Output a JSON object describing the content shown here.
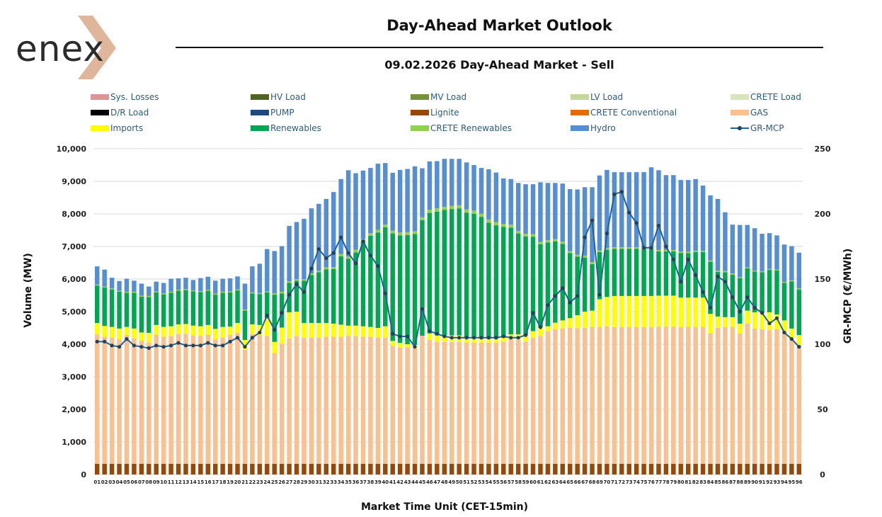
{
  "header": {
    "logo_text": "enex",
    "title": "Day-Ahead Market Outlook",
    "subtitle": "09.02.2026  Day-Ahead Market - Sell"
  },
  "colors": {
    "Sys. Losses": "#d99694",
    "HV Load": "#4f6228",
    "MV Load": "#76923c",
    "LV Load": "#c3d69b",
    "CRETE Load": "#d7e4bc",
    "D/R Load": "#000000",
    "PUMP": "#1f497d",
    "Lignite": "#974706",
    "CRETE Conventional": "#e36c09",
    "GAS": "#fac090",
    "Imports": "#ffff00",
    "Renewables": "#00a651",
    "CRETE Renewables": "#92d050",
    "Hydro": "#558ed5",
    "GR-MCP": "#1f6390",
    "logo_dark": "#2b2b2b",
    "logo_accent": "#d9a98a"
  },
  "chart_data": {
    "type": "bar",
    "title": "09.02.2026  Day-Ahead Market - Sell",
    "xlabel": "Market Time Unit (CET-15min)",
    "ylabel": "Volume (MW)",
    "y2label": "GR-MCP (€/MWh)",
    "ylim": [
      0,
      10000
    ],
    "y2lim": [
      0,
      250
    ],
    "yticks": [
      "0",
      "1,000",
      "2,000",
      "3,000",
      "4,000",
      "5,000",
      "6,000",
      "7,000",
      "8,000",
      "9,000",
      "10,000"
    ],
    "y2ticks": [
      "0",
      "50",
      "100",
      "150",
      "200",
      "250"
    ],
    "legend": [
      "Sys. Losses",
      "HV Load",
      "MV Load",
      "LV Load",
      "CRETE Load",
      "D/R Load",
      "PUMP",
      "Lignite",
      "CRETE Conventional",
      "GAS",
      "Imports",
      "Renewables",
      "CRETE Renewables",
      "Hydro",
      "GR-MCP"
    ],
    "categories": [
      "01",
      "02",
      "03",
      "04",
      "05",
      "06",
      "07",
      "08",
      "09",
      "10",
      "11",
      "12",
      "13",
      "14",
      "15",
      "16",
      "17",
      "18",
      "19",
      "20",
      "21",
      "22",
      "23",
      "24",
      "25",
      "26",
      "27",
      "28",
      "29",
      "30",
      "31",
      "32",
      "33",
      "34",
      "35",
      "36",
      "37",
      "38",
      "39",
      "40",
      "41",
      "42",
      "43",
      "44",
      "45",
      "46",
      "47",
      "48",
      "49",
      "50",
      "51",
      "52",
      "53",
      "54",
      "55",
      "56",
      "57",
      "58",
      "59",
      "60",
      "61",
      "62",
      "63",
      "64",
      "65",
      "66",
      "67",
      "68",
      "69",
      "70",
      "71",
      "72",
      "73",
      "74",
      "75",
      "76",
      "77",
      "78",
      "79",
      "80",
      "81",
      "82",
      "83",
      "84",
      "85",
      "86",
      "87",
      "88",
      "89",
      "90",
      "91",
      "92",
      "93",
      "94",
      "95",
      "96"
    ],
    "series": [
      {
        "name": "Lignite",
        "values": [
          330,
          330,
          330,
          330,
          330,
          330,
          330,
          330,
          330,
          330,
          330,
          330,
          330,
          330,
          330,
          330,
          330,
          330,
          330,
          330,
          330,
          330,
          330,
          330,
          330,
          330,
          330,
          330,
          330,
          330,
          330,
          330,
          330,
          330,
          330,
          330,
          330,
          330,
          330,
          330,
          330,
          330,
          330,
          330,
          330,
          330,
          330,
          330,
          330,
          330,
          330,
          330,
          330,
          330,
          330,
          330,
          330,
          330,
          330,
          330,
          330,
          330,
          330,
          330,
          330,
          330,
          330,
          330,
          330,
          330,
          330,
          330,
          330,
          330,
          330,
          330,
          330,
          330,
          330,
          330,
          330,
          330,
          330,
          330,
          330,
          330,
          330,
          330,
          330,
          330,
          330,
          330,
          330,
          330,
          330,
          330
        ]
      },
      {
        "name": "GAS",
        "values": [
          3970,
          3900,
          3870,
          3820,
          3950,
          3850,
          3780,
          3720,
          3960,
          3900,
          3920,
          3980,
          3990,
          3940,
          3920,
          3960,
          3820,
          3880,
          3960,
          4020,
          3500,
          3980,
          3950,
          3920,
          3400,
          3680,
          3850,
          3920,
          3870,
          3870,
          3870,
          3900,
          3900,
          3900,
          3920,
          3920,
          3900,
          3900,
          3870,
          3870,
          3620,
          3560,
          3570,
          3550,
          3930,
          3800,
          3740,
          3740,
          3740,
          3740,
          3720,
          3720,
          3720,
          3720,
          3720,
          3750,
          3820,
          3800,
          3750,
          3870,
          3920,
          4070,
          4130,
          4150,
          4170,
          4160,
          4170,
          4200,
          4200,
          4220,
          4200,
          4200,
          4200,
          4200,
          4200,
          4200,
          4210,
          4210,
          4210,
          4200,
          4200,
          4200,
          4200,
          4000,
          4170,
          4200,
          4200,
          4000,
          4300,
          4150,
          4130,
          4100,
          4130,
          4050,
          3850,
          3650
        ]
      },
      {
        "name": "Imports",
        "values": [
          350,
          330,
          330,
          330,
          250,
          300,
          250,
          300,
          300,
          300,
          300,
          300,
          300,
          300,
          300,
          300,
          320,
          320,
          250,
          300,
          300,
          300,
          310,
          540,
          340,
          500,
          800,
          750,
          450,
          450,
          450,
          420,
          400,
          370,
          320,
          320,
          320,
          300,
          300,
          350,
          150,
          150,
          100,
          100,
          0,
          200,
          200,
          200,
          200,
          200,
          150,
          150,
          120,
          120,
          120,
          120,
          150,
          170,
          200,
          200,
          270,
          150,
          200,
          250,
          300,
          400,
          500,
          500,
          850,
          900,
          950,
          950,
          950,
          950,
          950,
          950,
          950,
          950,
          950,
          900,
          900,
          900,
          900,
          600,
          350,
          300,
          300,
          300,
          400,
          500,
          500,
          550,
          450,
          350,
          300,
          300
        ]
      },
      {
        "name": "Renewables",
        "values": [
          1150,
          1180,
          1150,
          1130,
          1050,
          1100,
          1100,
          1100,
          1000,
          1000,
          1030,
          1030,
          1040,
          1050,
          1050,
          1050,
          1050,
          1050,
          1050,
          1000,
          900,
          950,
          950,
          800,
          1450,
          1050,
          900,
          950,
          1300,
          1470,
          1560,
          1650,
          1680,
          2100,
          2050,
          2250,
          2600,
          2800,
          2930,
          3040,
          3300,
          3300,
          3350,
          3400,
          3550,
          3700,
          3800,
          3850,
          3880,
          3900,
          3840,
          3800,
          3740,
          3560,
          3480,
          3400,
          3280,
          3100,
          3030,
          2900,
          2550,
          2570,
          2500,
          2350,
          2000,
          1800,
          1660,
          1430,
          1450,
          1450,
          1450,
          1450,
          1450,
          1450,
          1450,
          1450,
          1360,
          1360,
          1360,
          1370,
          1370,
          1400,
          1400,
          1600,
          1370,
          1380,
          1300,
          1400,
          1300,
          1250,
          1250,
          1300,
          1350,
          1150,
          1450,
          1400
        ]
      },
      {
        "name": "CRETE Renewables",
        "values": [
          30,
          30,
          30,
          30,
          30,
          30,
          30,
          30,
          30,
          30,
          30,
          30,
          30,
          30,
          30,
          30,
          30,
          30,
          30,
          30,
          30,
          30,
          30,
          30,
          40,
          50,
          50,
          50,
          50,
          50,
          50,
          60,
          60,
          70,
          70,
          80,
          80,
          80,
          80,
          80,
          90,
          90,
          90,
          90,
          90,
          100,
          100,
          100,
          100,
          100,
          100,
          100,
          100,
          100,
          100,
          90,
          90,
          80,
          80,
          80,
          70,
          70,
          70,
          70,
          60,
          60,
          60,
          60,
          50,
          50,
          50,
          50,
          50,
          50,
          50,
          50,
          40,
          40,
          40,
          40,
          40,
          40,
          40,
          40,
          40,
          40,
          40,
          30,
          30,
          30,
          30,
          30,
          30,
          30,
          30,
          30
        ]
      },
      {
        "name": "Hydro",
        "values": [
          560,
          520,
          330,
          300,
          400,
          340,
          370,
          290,
          300,
          320,
          400,
          350,
          350,
          320,
          400,
          400,
          400,
          400,
          400,
          400,
          800,
          800,
          900,
          1300,
          1300,
          1400,
          1700,
          1750,
          1850,
          2000,
          2050,
          2100,
          2300,
          2300,
          2650,
          2350,
          2100,
          2000,
          2030,
          1890,
          1770,
          1920,
          1940,
          1990,
          1500,
          1480,
          1450,
          1470,
          1440,
          1420,
          1440,
          1400,
          1400,
          1540,
          1520,
          1400,
          1400,
          1470,
          1520,
          1530,
          1830,
          1760,
          1720,
          1780,
          1900,
          2000,
          2100,
          2300,
          2300,
          2400,
          2300,
          2300,
          2300,
          2300,
          2300,
          2450,
          2450,
          2300,
          2300,
          2200,
          2200,
          2200,
          2000,
          2000,
          2200,
          1800,
          1500,
          1600,
          1300,
          1300,
          1150,
          1100,
          1050,
          1150,
          1050,
          1100
        ]
      }
    ],
    "line": {
      "name": "GR-MCP",
      "axis": "right",
      "values": [
        102,
        102,
        99,
        98,
        104,
        99,
        98,
        97,
        99,
        98,
        99,
        101,
        99,
        99,
        99,
        101,
        99,
        99,
        102,
        105,
        98,
        105,
        109,
        122,
        111,
        124,
        138,
        146,
        140,
        158,
        173,
        166,
        170,
        182,
        170,
        162,
        179,
        168,
        160,
        139,
        108,
        106,
        106,
        98,
        127,
        110,
        108,
        106,
        105,
        105,
        105,
        105,
        105,
        105,
        105,
        106,
        105,
        105,
        107,
        124,
        113,
        130,
        137,
        143,
        132,
        137,
        182,
        195,
        138,
        185,
        215,
        217,
        201,
        193,
        174,
        174,
        191,
        175,
        165,
        148,
        165,
        153,
        140,
        128,
        152,
        148,
        136,
        125,
        136,
        128,
        124,
        116,
        120,
        109,
        104,
        98
      ]
    }
  }
}
